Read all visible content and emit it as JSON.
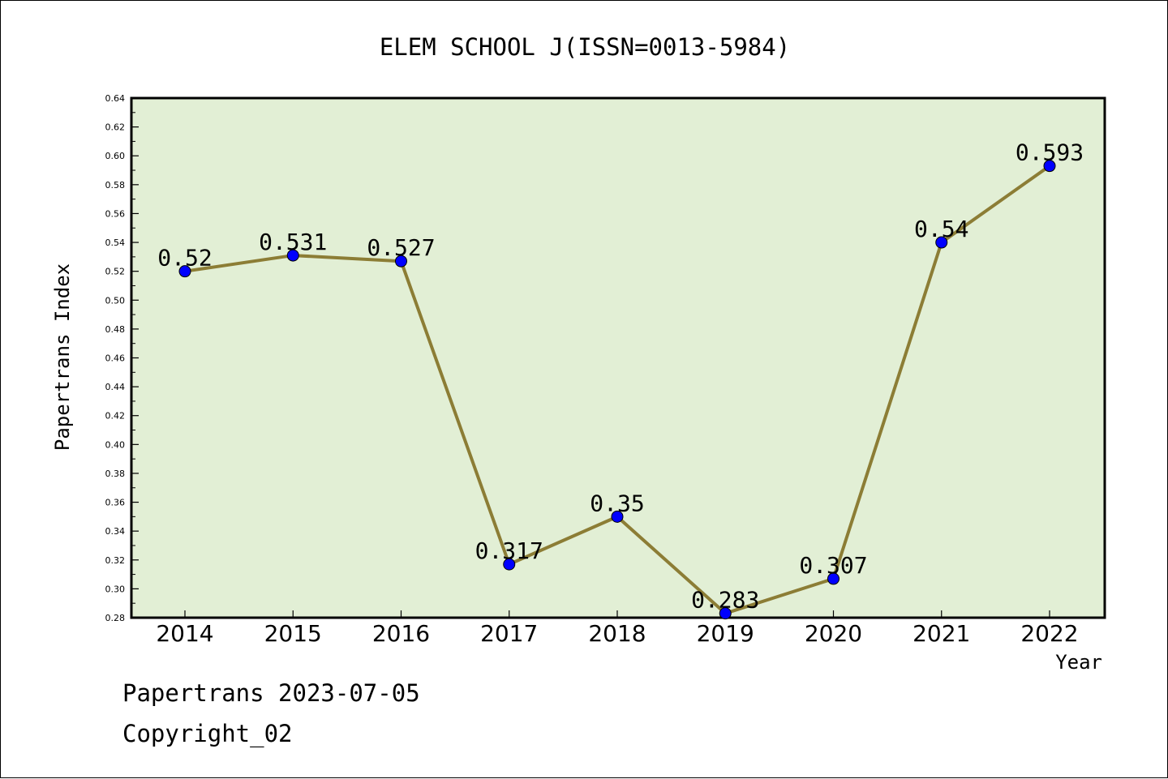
{
  "chart_data": {
    "type": "line",
    "title": "ELEM SCHOOL J(ISSN=0013-5984)",
    "xlabel": "Year",
    "ylabel": "Papertrans Index",
    "categories": [
      "2014",
      "2015",
      "2016",
      "2017",
      "2018",
      "2019",
      "2020",
      "2021",
      "2022"
    ],
    "series": [
      {
        "values": [
          0.52,
          0.531,
          0.527,
          0.317,
          0.35,
          0.283,
          0.307,
          0.54,
          0.593
        ],
        "labels": [
          "0.52",
          "0.531",
          "0.527",
          "0.317",
          "0.35",
          "0.283",
          "0.307",
          "0.54",
          "0.593"
        ]
      }
    ],
    "ylim": [
      0.28,
      0.64
    ],
    "yticks": [
      "0.28",
      "0.30",
      "0.32",
      "0.34",
      "0.36",
      "0.38",
      "0.40",
      "0.42",
      "0.44",
      "0.46",
      "0.48",
      "0.50",
      "0.52",
      "0.54",
      "0.56",
      "0.58",
      "0.60",
      "0.62",
      "0.64"
    ],
    "grid": false,
    "legend": "none",
    "colors": {
      "plot_bg": "#e2efd5",
      "line": "#8c7d35",
      "marker": "#0000ff"
    }
  },
  "footer": {
    "line1": "Papertrans 2023-07-05",
    "line2": "Copyright_02"
  }
}
